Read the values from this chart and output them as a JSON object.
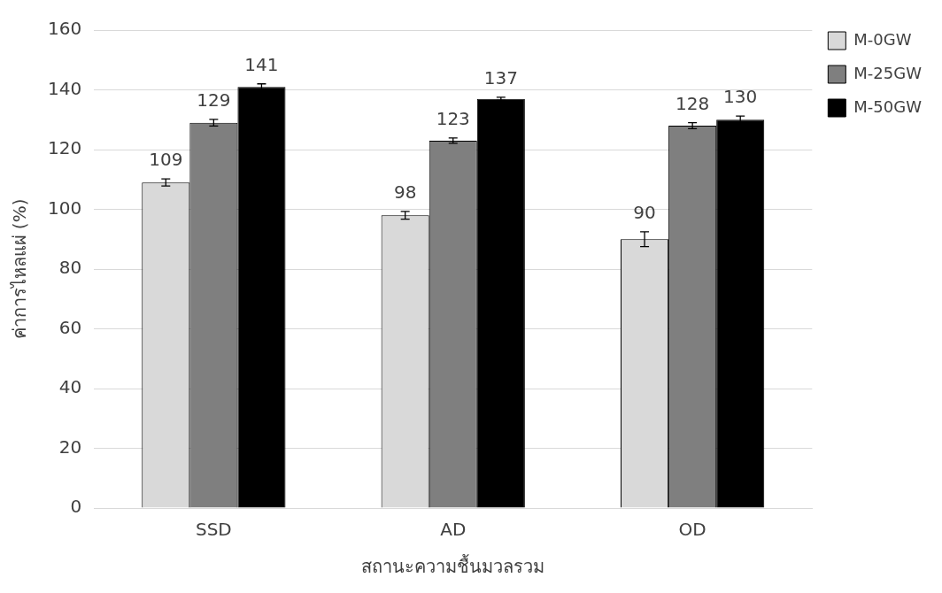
{
  "chart_data": {
    "type": "bar",
    "xlabel": "สถานะความชื้นมวลรวม",
    "ylabel": "ค่าการไหลแผ่ (%)",
    "categories": [
      "SSD",
      "AD",
      "OD"
    ],
    "series": [
      {
        "name": "M-0GW",
        "color": "#d9d9d9",
        "values": [
          109,
          98,
          90
        ],
        "errors": [
          1.2,
          1.3,
          2.5
        ]
      },
      {
        "name": "M-25GW",
        "color": "#7f7f7f",
        "values": [
          129,
          123,
          128
        ],
        "errors": [
          1.1,
          0.9,
          1.0
        ]
      },
      {
        "name": "M-50GW",
        "color": "#000000",
        "values": [
          141,
          137,
          130
        ],
        "errors": [
          1.0,
          0.5,
          1.2
        ]
      }
    ],
    "ylim": [
      0,
      160
    ],
    "yticks": [
      0,
      20,
      40,
      60,
      80,
      100,
      120,
      140,
      160
    ],
    "grid": "y",
    "legend": "top right",
    "data_labels": true
  }
}
